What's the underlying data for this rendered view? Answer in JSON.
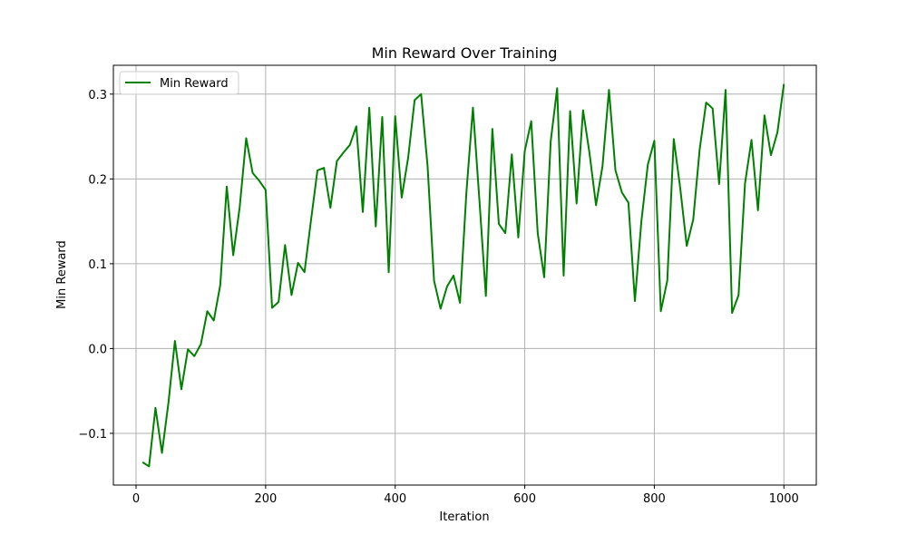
{
  "chart_data": {
    "type": "line",
    "title": "Min Reward Over Training",
    "xlabel": "Iteration",
    "ylabel": "Min Reward",
    "xlim": [
      -35,
      1050
    ],
    "ylim": [
      -0.161,
      0.334
    ],
    "xticks": [
      0,
      200,
      400,
      600,
      800,
      1000
    ],
    "yticks": [
      -0.1,
      0.0,
      0.1,
      0.2,
      0.3
    ],
    "xtick_labels": [
      "0",
      "200",
      "400",
      "600",
      "800",
      "1000"
    ],
    "ytick_labels": [
      "−0.1",
      "0.0",
      "0.1",
      "0.2",
      "0.3"
    ],
    "grid": true,
    "legend_position": "upper left",
    "series": [
      {
        "name": "Min Reward",
        "color": "#008000",
        "x": [
          10,
          20,
          30,
          40,
          50,
          60,
          70,
          80,
          90,
          100,
          110,
          120,
          130,
          140,
          150,
          160,
          170,
          180,
          190,
          200,
          210,
          220,
          230,
          240,
          250,
          260,
          270,
          280,
          290,
          300,
          310,
          320,
          330,
          340,
          350,
          360,
          370,
          380,
          390,
          400,
          410,
          420,
          430,
          440,
          450,
          460,
          470,
          480,
          490,
          500,
          510,
          520,
          530,
          540,
          550,
          560,
          570,
          580,
          590,
          600,
          610,
          620,
          630,
          640,
          650,
          660,
          670,
          680,
          690,
          700,
          710,
          720,
          730,
          740,
          750,
          760,
          770,
          780,
          790,
          800,
          810,
          820,
          830,
          840,
          850,
          860,
          870,
          880,
          890,
          900,
          910,
          920,
          930,
          940,
          950,
          960,
          970,
          980,
          990,
          1000
        ],
        "values": [
          -0.134,
          -0.139,
          -0.07,
          -0.123,
          -0.064,
          0.009,
          -0.048,
          -0.001,
          -0.009,
          0.005,
          0.044,
          0.033,
          0.075,
          0.191,
          0.11,
          0.167,
          0.248,
          0.207,
          0.198,
          0.187,
          0.048,
          0.055,
          0.122,
          0.063,
          0.101,
          0.09,
          0.151,
          0.21,
          0.213,
          0.166,
          0.221,
          0.231,
          0.24,
          0.262,
          0.161,
          0.284,
          0.144,
          0.273,
          0.09,
          0.274,
          0.178,
          0.225,
          0.293,
          0.3,
          0.215,
          0.08,
          0.047,
          0.073,
          0.086,
          0.054,
          0.185,
          0.284,
          0.175,
          0.062,
          0.259,
          0.147,
          0.136,
          0.229,
          0.131,
          0.233,
          0.268,
          0.136,
          0.084,
          0.244,
          0.307,
          0.086,
          0.28,
          0.171,
          0.281,
          0.23,
          0.169,
          0.215,
          0.305,
          0.21,
          0.184,
          0.172,
          0.056,
          0.15,
          0.217,
          0.245,
          0.044,
          0.08,
          0.247,
          0.189,
          0.121,
          0.152,
          0.235,
          0.29,
          0.283,
          0.194,
          0.305,
          0.042,
          0.063,
          0.195,
          0.246,
          0.163,
          0.275,
          0.228,
          0.255,
          0.312
        ]
      }
    ]
  }
}
